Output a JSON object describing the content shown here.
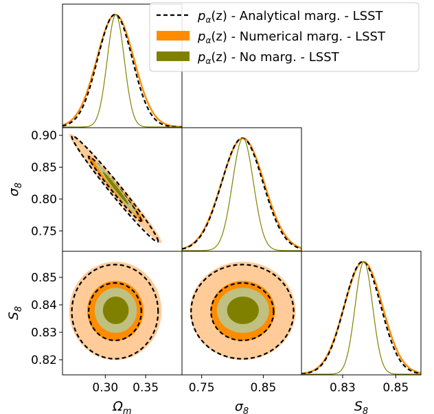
{
  "chart_data": {
    "type": "corner",
    "parameters": [
      {
        "symbol": "Ω",
        "sub": "m",
        "range": [
          0.247,
          0.395
        ],
        "ticks": [
          0.3,
          0.35
        ],
        "tick_labels": [
          "0.30",
          "0.35"
        ]
      },
      {
        "symbol": "σ",
        "sub": "8",
        "range": [
          0.718,
          0.912
        ],
        "ticks": [
          0.75,
          0.8,
          0.85,
          0.9
        ],
        "tick_labels": [
          "0.75",
          "0.80",
          "0.85",
          "0.90"
        ],
        "x_ticks": [
          0.75,
          0.85
        ],
        "x_tick_labels": [
          "0.75",
          "0.85"
        ]
      },
      {
        "symbol": "S",
        "sub": "8",
        "range": [
          0.8145,
          0.8595
        ],
        "ticks": [
          0.82,
          0.83,
          0.84,
          0.85
        ],
        "tick_labels": [
          "0.82",
          "0.83",
          "0.84",
          "0.85"
        ],
        "x_ticks": [
          0.83,
          0.85
        ],
        "x_tick_labels": [
          "0.83",
          "0.85"
        ]
      }
    ],
    "series": [
      {
        "name": "pα(z) - Analytical marg. - LSST",
        "label_main": "p",
        "label_sub": "α",
        "label_args": "(z)",
        "label_rest": " - Analytical marg. - LSST",
        "color": "#000000",
        "style": "dashed",
        "mean": [
          0.312,
          0.816,
          0.8375
        ],
        "sigma": [
          0.0215,
          0.0335,
          0.0069
        ],
        "corr": [
          [
            1,
            -0.985,
            0.0
          ],
          [
            -0.985,
            1,
            0.0
          ],
          [
            0.0,
            0.0,
            1
          ]
        ]
      },
      {
        "name": "pα(z) - Numerical marg. - LSST",
        "label_main": "p",
        "label_sub": "α",
        "label_args": "(z)",
        "label_rest": " - Numerical marg. - LSST",
        "color": "#ff8c00",
        "fill_inner": "#ff8c00",
        "fill_outer": "#ffcc99",
        "style": "filled",
        "mean": [
          0.3125,
          0.8168,
          0.8378
        ],
        "sigma": [
          0.023,
          0.0345,
          0.0072
        ],
        "corr": [
          [
            1,
            -0.985,
            0.0
          ],
          [
            -0.985,
            1,
            0.0
          ],
          [
            0.0,
            0.0,
            1
          ]
        ]
      },
      {
        "name": "pα(z) - No marg. - LSST",
        "label_main": "p",
        "label_sub": "α",
        "label_args": "(z)",
        "label_rest": " - No marg. - LSST",
        "color": "#808000",
        "fill_inner": "#808000",
        "fill_outer": "#c0c080",
        "style": "filled",
        "mean": [
          0.313,
          0.817,
          0.838
        ],
        "sigma": [
          0.0105,
          0.017,
          0.0033
        ],
        "corr": [
          [
            1,
            -0.985,
            0.0
          ],
          [
            -0.985,
            1,
            0.0
          ],
          [
            0.0,
            0.0,
            1
          ]
        ]
      }
    ],
    "legend_position": "top-right",
    "grid": false
  }
}
